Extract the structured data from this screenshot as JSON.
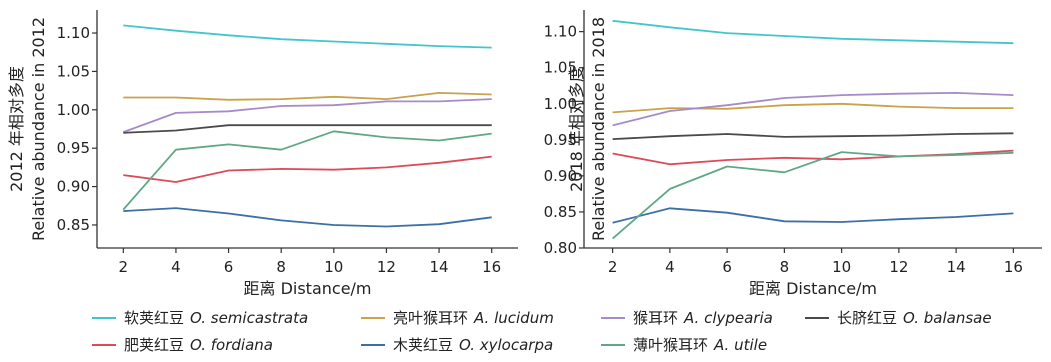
{
  "chart_data": [
    {
      "type": "line",
      "title": "",
      "xlabel": "距离 Distance/m",
      "ylabel_line1": "2012 年相对多度",
      "ylabel_line2": "Relative abundance in 2012",
      "x": [
        2,
        4,
        6,
        8,
        10,
        12,
        14,
        16
      ],
      "xlim": [
        1,
        17
      ],
      "ylim": [
        0.82,
        1.13
      ],
      "yticks": [
        0.85,
        0.9,
        0.95,
        1.0,
        1.05,
        1.1
      ],
      "ytick_labels": [
        "0.85",
        "0.90",
        "0.95",
        "1.00",
        "1.05",
        "1.10"
      ],
      "xtick_labels": [
        "2",
        "4",
        "6",
        "8",
        "10",
        "12",
        "14",
        "16"
      ],
      "grid": false,
      "series": [
        {
          "key": "semicastrata",
          "values": [
            1.11,
            1.103,
            1.097,
            1.092,
            1.089,
            1.086,
            1.083,
            1.081
          ]
        },
        {
          "key": "lucidum",
          "values": [
            1.016,
            1.016,
            1.013,
            1.014,
            1.017,
            1.014,
            1.022,
            1.02
          ]
        },
        {
          "key": "clypearia",
          "values": [
            0.971,
            0.996,
            0.998,
            1.005,
            1.006,
            1.011,
            1.011,
            1.014
          ]
        },
        {
          "key": "balansae",
          "values": [
            0.97,
            0.973,
            0.98,
            0.98,
            0.98,
            0.98,
            0.98,
            0.98
          ]
        },
        {
          "key": "fordiana",
          "values": [
            0.915,
            0.906,
            0.921,
            0.923,
            0.922,
            0.925,
            0.931,
            0.939
          ]
        },
        {
          "key": "xylocarpa",
          "values": [
            0.868,
            0.872,
            0.865,
            0.856,
            0.85,
            0.848,
            0.851,
            0.86
          ]
        },
        {
          "key": "utile",
          "values": [
            0.87,
            0.948,
            0.955,
            0.948,
            0.972,
            0.964,
            0.96,
            0.969
          ]
        }
      ]
    },
    {
      "type": "line",
      "title": "",
      "xlabel": "距离 Distance/m",
      "ylabel_line1": "2018 年相对多度",
      "ylabel_line2": "Relative abundance in 2018",
      "x": [
        2,
        4,
        6,
        8,
        10,
        12,
        14,
        16
      ],
      "xlim": [
        1,
        17
      ],
      "ylim": [
        0.8,
        1.13
      ],
      "yticks": [
        0.8,
        0.85,
        0.9,
        0.95,
        1.0,
        1.05,
        1.1
      ],
      "ytick_labels": [
        "0.80",
        "0.85",
        "0.90",
        "0.95",
        "1.00",
        "1.05",
        "1.10"
      ],
      "xtick_labels": [
        "2",
        "4",
        "6",
        "8",
        "10",
        "12",
        "14",
        "16"
      ],
      "grid": false,
      "series": [
        {
          "key": "semicastrata",
          "values": [
            1.115,
            1.106,
            1.098,
            1.094,
            1.09,
            1.088,
            1.086,
            1.084
          ]
        },
        {
          "key": "lucidum",
          "values": [
            0.988,
            0.994,
            0.993,
            0.998,
            1.0,
            0.996,
            0.994,
            0.994
          ]
        },
        {
          "key": "clypearia",
          "values": [
            0.97,
            0.99,
            0.998,
            1.008,
            1.012,
            1.014,
            1.015,
            1.012
          ]
        },
        {
          "key": "balansae",
          "values": [
            0.951,
            0.955,
            0.958,
            0.954,
            0.955,
            0.956,
            0.958,
            0.959
          ]
        },
        {
          "key": "fordiana",
          "values": [
            0.931,
            0.916,
            0.922,
            0.925,
            0.923,
            0.927,
            0.93,
            0.935
          ]
        },
        {
          "key": "xylocarpa",
          "values": [
            0.835,
            0.855,
            0.849,
            0.837,
            0.836,
            0.84,
            0.843,
            0.848
          ]
        },
        {
          "key": "utile",
          "values": [
            0.813,
            0.882,
            0.913,
            0.905,
            0.933,
            0.927,
            0.929,
            0.932
          ]
        }
      ]
    }
  ],
  "legend": {
    "placement": "bottom",
    "items": [
      {
        "key": "semicastrata",
        "zh": "软荚红豆",
        "latin": "O. semicastrata",
        "color": "#43c6c9"
      },
      {
        "key": "lucidum",
        "zh": "亮叶猴耳环",
        "latin": "A. lucidum",
        "color": "#c9a24a"
      },
      {
        "key": "clypearia",
        "zh": "猴耳环",
        "latin": "A. clypearia",
        "color": "#a58bc9"
      },
      {
        "key": "balansae",
        "zh": "长脐红豆",
        "latin": "O. balansae",
        "color": "#4a4a4a"
      },
      {
        "key": "fordiana",
        "zh": "肥荚红豆",
        "latin": "O. fordiana",
        "color": "#dc4b5a"
      },
      {
        "key": "xylocarpa",
        "zh": "木荚红豆",
        "latin": "O. xylocarpa",
        "color": "#3c6fa6"
      },
      {
        "key": "utile",
        "zh": "薄叶猴耳环",
        "latin": "A. utile",
        "color": "#5fa885"
      }
    ]
  },
  "axis_color": "#333333"
}
